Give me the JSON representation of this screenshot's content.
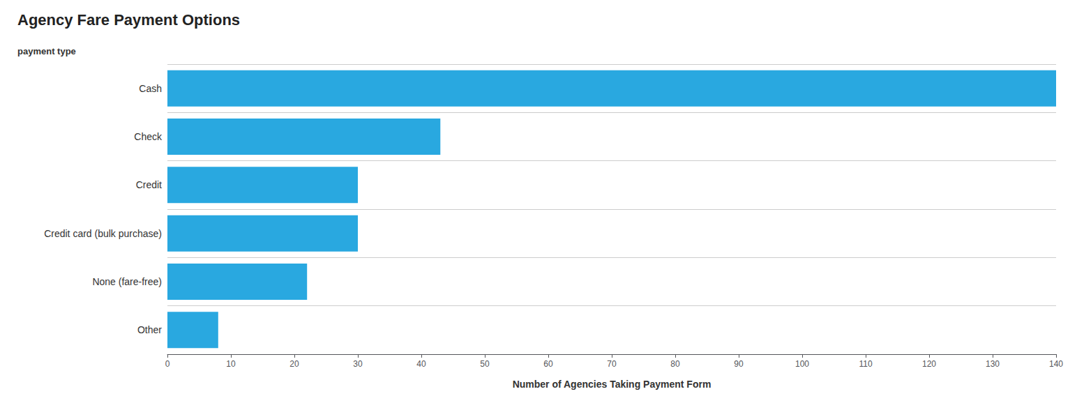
{
  "chart_data": {
    "type": "bar",
    "orientation": "horizontal",
    "title": "Agency Fare Payment Options",
    "subtitle": "payment type",
    "xlabel": "Number of Agencies Taking Payment Form",
    "categories": [
      "Cash",
      "Check",
      "Credit",
      "Credit card (bulk purchase)",
      "None (fare-free)",
      "Other"
    ],
    "values": [
      140,
      43,
      30,
      30,
      22,
      8
    ],
    "color": "#29a8e0",
    "xlim": [
      0,
      140
    ],
    "xticks": [
      0,
      10,
      20,
      30,
      40,
      50,
      60,
      70,
      80,
      90,
      100,
      110,
      120,
      130,
      140
    ],
    "grid": true
  }
}
